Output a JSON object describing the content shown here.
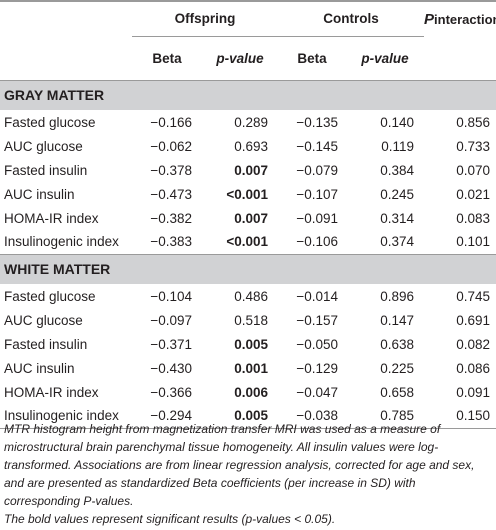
{
  "header": {
    "offspring": "Offspring",
    "controls": "Controls",
    "p_interaction_main": "P",
    "p_interaction_sub": "interaction",
    "beta": "Beta",
    "p_value": "p-value"
  },
  "sections": [
    {
      "title": "GRAY MATTER",
      "rows": [
        {
          "label": "Fasted glucose",
          "off_beta": "−0.166",
          "off_p": "0.289",
          "off_p_bold": false,
          "ctl_beta": "−0.135",
          "ctl_p": "0.140",
          "p_int": "0.856"
        },
        {
          "label": "AUC glucose",
          "off_beta": "−0.062",
          "off_p": "0.693",
          "off_p_bold": false,
          "ctl_beta": "−0.145",
          "ctl_p": "0.119",
          "p_int": "0.733"
        },
        {
          "label": "Fasted insulin",
          "off_beta": "−0.378",
          "off_p": "0.007",
          "off_p_bold": true,
          "ctl_beta": "−0.079",
          "ctl_p": "0.384",
          "p_int": "0.070"
        },
        {
          "label": "AUC insulin",
          "off_beta": "−0.473",
          "off_p": "<0.001",
          "off_p_bold": true,
          "ctl_beta": "−0.107",
          "ctl_p": "0.245",
          "p_int": "0.021"
        },
        {
          "label": "HOMA-IR index",
          "off_beta": "−0.382",
          "off_p": "0.007",
          "off_p_bold": true,
          "ctl_beta": "−0.091",
          "ctl_p": "0.314",
          "p_int": "0.083"
        },
        {
          "label": "Insulinogenic index",
          "off_beta": "−0.383",
          "off_p": "<0.001",
          "off_p_bold": true,
          "ctl_beta": "−0.106",
          "ctl_p": "0.374",
          "p_int": "0.101"
        }
      ]
    },
    {
      "title": "WHITE MATTER",
      "rows": [
        {
          "label": "Fasted glucose",
          "off_beta": "−0.104",
          "off_p": "0.486",
          "off_p_bold": false,
          "ctl_beta": "−0.014",
          "ctl_p": "0.896",
          "p_int": "0.745"
        },
        {
          "label": "AUC glucose",
          "off_beta": "−0.097",
          "off_p": "0.518",
          "off_p_bold": false,
          "ctl_beta": "−0.157",
          "ctl_p": "0.147",
          "p_int": "0.691"
        },
        {
          "label": "Fasted insulin",
          "off_beta": "−0.371",
          "off_p": "0.005",
          "off_p_bold": true,
          "ctl_beta": "−0.050",
          "ctl_p": "0.638",
          "p_int": "0.082"
        },
        {
          "label": "AUC insulin",
          "off_beta": "−0.430",
          "off_p": "0.001",
          "off_p_bold": true,
          "ctl_beta": "−0.129",
          "ctl_p": "0.225",
          "p_int": "0.086"
        },
        {
          "label": "HOMA-IR index",
          "off_beta": "−0.366",
          "off_p": "0.006",
          "off_p_bold": true,
          "ctl_beta": "−0.047",
          "ctl_p": "0.658",
          "p_int": "0.091"
        },
        {
          "label": "Insulinogenic index",
          "off_beta": "−0.294",
          "off_p": "0.005",
          "off_p_bold": true,
          "ctl_beta": "−0.038",
          "ctl_p": "0.785",
          "p_int": "0.150"
        }
      ]
    }
  ],
  "footnotes": [
    "MTR histogram height from magnetization transfer MRI was used as a measure of microstructural brain parenchymal tissue homogeneity. All insulin values were log-transformed. Associations are from linear regression analysis, corrected for age and sex, and are presented as standardized Beta coefficients (per increase in SD) with corresponding P-values.",
    "The bold values represent significant results (p-values < 0.05)."
  ]
}
